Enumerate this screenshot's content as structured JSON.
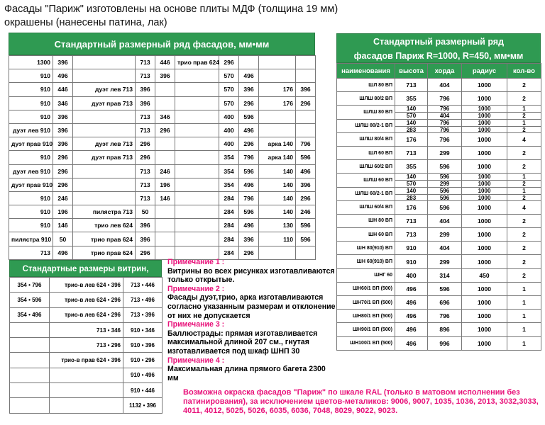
{
  "header": {
    "line1": "Фасады  \"Париж\"  изготовлены на основе плиты МДФ (толщина 19 мм)",
    "line2": "окрашены (нанесены патина, лак)"
  },
  "t1": {
    "title": "Стандартный размерный ряд фасадов, мм•мм",
    "rows": [
      [
        "1300",
        "396",
        "",
        "713",
        "446",
        "трио прав 624",
        "296",
        "",
        "",
        ""
      ],
      [
        "910",
        "496",
        "",
        "713",
        "396",
        "",
        "570",
        "496",
        "",
        ""
      ],
      [
        "910",
        "446",
        "дуэт лев 713",
        "396",
        "",
        "",
        "570",
        "396",
        "176",
        "396"
      ],
      [
        "910",
        "346",
        "дуэт прав 713",
        "396",
        "",
        "",
        "570",
        "296",
        "176",
        "296"
      ],
      [
        "910",
        "396",
        "",
        "713",
        "346",
        "",
        "400",
        "596",
        "",
        ""
      ],
      [
        "дуэт лев 910",
        "396",
        "",
        "713",
        "296",
        "",
        "400",
        "496",
        "",
        ""
      ],
      [
        "дуэт прав 910",
        "396",
        "дуэт лев 713",
        "296",
        "",
        "",
        "400",
        "296",
        "арка 140",
        "796"
      ],
      [
        "910",
        "296",
        "дуэт прав 713",
        "296",
        "",
        "",
        "354",
        "796",
        "арка 140",
        "596"
      ],
      [
        "дуэт лев 910",
        "296",
        "",
        "713",
        "246",
        "",
        "354",
        "596",
        "140",
        "496"
      ],
      [
        "дуэт прав 910",
        "296",
        "",
        "713",
        "196",
        "",
        "354",
        "496",
        "140",
        "396"
      ],
      [
        "910",
        "246",
        "",
        "713",
        "146",
        "",
        "284",
        "796",
        "140",
        "296"
      ],
      [
        "910",
        "196",
        "пилястра 713",
        "50",
        "",
        "",
        "284",
        "596",
        "140",
        "246"
      ],
      [
        "910",
        "146",
        "трио лев 624",
        "396",
        "",
        "",
        "284",
        "496",
        "130",
        "596"
      ],
      [
        "пилястра 910",
        "50",
        "трио прав 624",
        "396",
        "",
        "",
        "284",
        "396",
        "110",
        "596"
      ],
      [
        "713",
        "496",
        "трио прав 624",
        "296",
        "",
        "",
        "284",
        "296",
        "",
        ""
      ]
    ]
  },
  "t2": {
    "title_line1": "Стандартный размерный ряд",
    "title_line2": "фасадов Париж R=1000, R=450, мм•мм",
    "headers": [
      "наименования",
      "высота",
      "хорда",
      "радиус",
      "кол-во"
    ],
    "rows": [
      {
        "name": "ШЛ 80 ВП",
        "h": "713",
        "c": "404",
        "r": "1000",
        "q": "2"
      },
      {
        "name": "ШЛШ 80/2 ВП",
        "h": "355",
        "c": "796",
        "r": "1000",
        "q": "2"
      },
      {
        "name": "ШЛШ 80 ВП",
        "h": "140",
        "h2": "570",
        "c": "796",
        "c2": "404",
        "r": "1000",
        "r2": "1000",
        "q": "1",
        "q2": "2"
      },
      {
        "name": "ШЛШ 80/2-1 ВП",
        "h": "140",
        "h2": "283",
        "c": "796",
        "c2": "796",
        "r": "1000",
        "r2": "1000",
        "q": "1",
        "q2": "2"
      },
      {
        "name": "ШЛШ 80/4 ВП",
        "h": "176",
        "c": "796",
        "r": "1000",
        "q": "4"
      },
      {
        "name": "ШЛ 60 ВП",
        "h": "713",
        "c": "299",
        "r": "1000",
        "q": "2"
      },
      {
        "name": "ШЛШ 60/2 ВП",
        "h": "355",
        "c": "596",
        "r": "1000",
        "q": "2"
      },
      {
        "name": "ШЛШ 60 ВП",
        "h": "140",
        "h2": "570",
        "c": "596",
        "c2": "299",
        "r": "1000",
        "r2": "1000",
        "q": "1",
        "q2": "2"
      },
      {
        "name": "ШЛШ 60/2-1 ВП",
        "h": "140",
        "h2": "283",
        "c": "596",
        "c2": "596",
        "r": "1000",
        "r2": "1000",
        "q": "1",
        "q2": "2"
      },
      {
        "name": "ШЛШ 60/4 ВП",
        "h": "176",
        "c": "596",
        "r": "1000",
        "q": "4"
      },
      {
        "name": "ШН 80 ВП",
        "h": "713",
        "c": "404",
        "r": "1000",
        "q": "2"
      },
      {
        "name": "ШН 60 ВП",
        "h": "713",
        "c": "299",
        "r": "1000",
        "q": "2"
      },
      {
        "name": "ШН 80(910) ВП",
        "h": "910",
        "c": "404",
        "r": "1000",
        "q": "2"
      },
      {
        "name": "ШН 60(910) ВП",
        "h": "910",
        "c": "299",
        "r": "1000",
        "q": "2"
      },
      {
        "name": "ШНГ 60",
        "h": "400",
        "c": "314",
        "r": "450",
        "q": "2"
      },
      {
        "name": "ШН60/1 ВП (500)",
        "h": "496",
        "c": "596",
        "r": "1000",
        "q": "1"
      },
      {
        "name": "ШН70/1 ВП (500)",
        "h": "496",
        "c": "696",
        "r": "1000",
        "q": "1"
      },
      {
        "name": "ШН80/1 ВП (500)",
        "h": "496",
        "c": "796",
        "r": "1000",
        "q": "1"
      },
      {
        "name": "ШН90/1 ВП (500)",
        "h": "496",
        "c": "896",
        "r": "1000",
        "q": "1"
      },
      {
        "name": "ШН100/1 ВП (500)",
        "h": "496",
        "c": "996",
        "r": "1000",
        "q": "1"
      }
    ]
  },
  "t3": {
    "title": "Стандартные размеры витрин, мм•мм",
    "rows": [
      [
        "354 • 796",
        "трио-в лев 624 • 396",
        "713 • 446"
      ],
      [
        "354 • 596",
        "трио-в лев 624 • 296",
        "713 • 496"
      ],
      [
        "354 • 496",
        "трио-в лев 624 • 296",
        "713 • 396"
      ],
      [
        "",
        "713 • 346",
        "910 • 346"
      ],
      [
        "",
        "713 • 296",
        "910 • 396"
      ],
      [
        "",
        "трио-в прав 624 • 396",
        "910 • 296"
      ],
      [
        "",
        "",
        "910 • 496"
      ],
      [
        "",
        "",
        "910 • 446"
      ],
      [
        "",
        "",
        "1132 • 396"
      ]
    ]
  },
  "notes": {
    "n1_title": "Примечание 1 :",
    "n1_text": "Витрины во всех рисунках изготавливаются только открытые.",
    "n2_title": "Примечание 2 :",
    "n2_text": "Фасады дуэт,трио, арка изготавливаются согласно указанным размерам и отклонение от них не допускается",
    "n3_title": "Примечание 3 :",
    "n3_text": "Баллюстрады: прямая изготавливается максимальной длиной 207 см., гнутая изготавливается под шкаф ШНП 30",
    "n4_title": "Примечание 4 :",
    "n4_text": "Максимальная длина прямого багета 2300 мм"
  },
  "ral": {
    "text": "Возможна окраска фасадов \"Париж\" по шкале RAL (только в матовом исполнении без патинирования), за исключением цветов-металиков: 9006, 9007, 1035, 1036, 2013, 3032,3033, 4011, 4012, 5025, 5026, 6035, 6036, 7048, 8029, 9022, 9023."
  },
  "colors": {
    "green": "#2f9a52",
    "pink": "#e8127a"
  }
}
